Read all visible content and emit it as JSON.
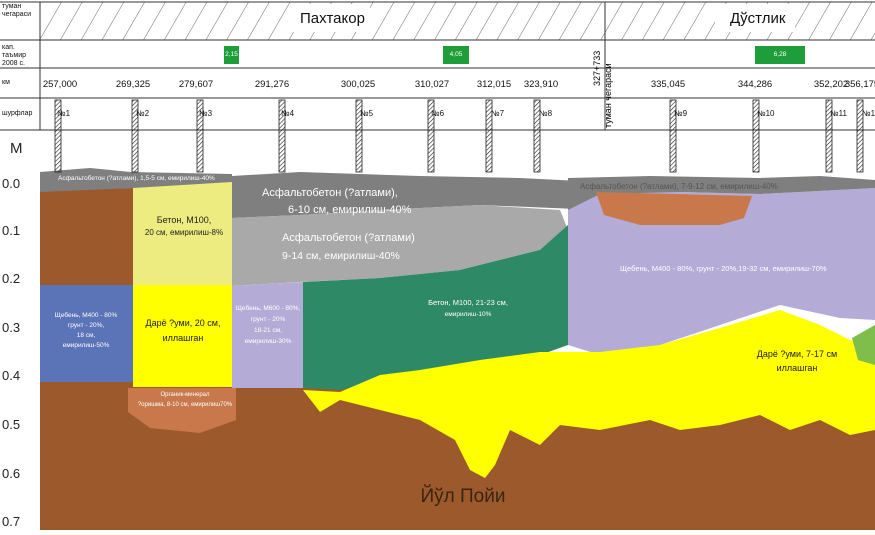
{
  "header": {
    "row1_label": "туман чегараси",
    "row2_label": "кап. таъмир 2008 с.",
    "row3_label": "км",
    "row4_label": "шурфлар",
    "section_left": "Пахтакор",
    "section_right": "Дўстлик",
    "boundary_km": "327+733",
    "boundary_label": "туман чегараси",
    "repair_values": [
      "2,15",
      "4,05",
      "6,28"
    ],
    "km_values": [
      "257,000",
      "269,325",
      "279,607",
      "291,276",
      "300,025",
      "310,027",
      "312,015",
      "323,910",
      "335,045",
      "344,286",
      "352,202",
      "356,175"
    ],
    "pits": [
      "№1",
      "№2",
      "№3",
      "№4",
      "№5",
      "№6",
      "№7",
      "№8",
      "№9",
      "№10",
      "№11",
      "№1"
    ]
  },
  "axis": {
    "unit": "М",
    "ticks": [
      "0.0",
      "0.1",
      "0.2",
      "0.3",
      "0.4",
      "0.5",
      "0.6",
      "0.7"
    ]
  },
  "layers": {
    "asphalt_left": "Асфальтобетон (?атлами), 1,5-5 см, емирилиш-40%",
    "beton_top_line1": "Бетон, М100,",
    "beton_top_line2": "20 см, емирилиш-8%",
    "asphalt_mid_line1": "Асфальтобетон (?атлами),",
    "asphalt_mid_line2": "6-10 см, емирилиш-40%",
    "asphalt_mid2_line1": "Асфальтобетон (?атлами)",
    "asphalt_mid2_line2": "9-14 см, емирилиш-40%",
    "asphalt_right": "Асфальтобетон (?атлами), 7-9-12 см, емирилиш-40%",
    "shcheben_left_line1": "Щебень, М400 - 80%",
    "shcheben_left_line2": "грунт - 20%,",
    "shcheben_left_line3": "18 см,",
    "shcheben_left_line4": "емирилиш-50%",
    "sand_left_line1": "Дарё ?уми, 20 см,",
    "sand_left_line2": "иллашган",
    "shcheben_mid_line1": "Щебень, М600 - 80%,",
    "shcheben_mid_line2": "грунт - 20%",
    "shcheben_mid_line3": "18-21 см,",
    "shcheben_mid_line4": "емирилиш-30%",
    "beton_green_line1": "Бетон, М100, 21-23 см,",
    "beton_green_line2": "емирилиш-10%",
    "shcheben_right": "Щебень, М400 - 80%,  грунт - 20%,19-32 см, емирилиш-70%",
    "sand_right_line1": "Дарё ?уми, 7-17 см",
    "sand_right_line2": "иллашган",
    "organic_line1": "Органик-минерал",
    "organic_line2": "?оришма, 8-10 см, емирилиш70%",
    "subgrade": "Йўл Пойи"
  },
  "colors": {
    "brown": "#9c5a2c",
    "yellow": "#ffff00",
    "gray_dark": "#7f7f7f",
    "gray_light": "#a9a9a9",
    "green_dark": "#2e8a66",
    "lavender": "#b4acd6",
    "blue": "#5b73b7",
    "pale_yellow": "#ecec80",
    "repair_green": "#1e9e3a",
    "organic": "#c8784a"
  }
}
